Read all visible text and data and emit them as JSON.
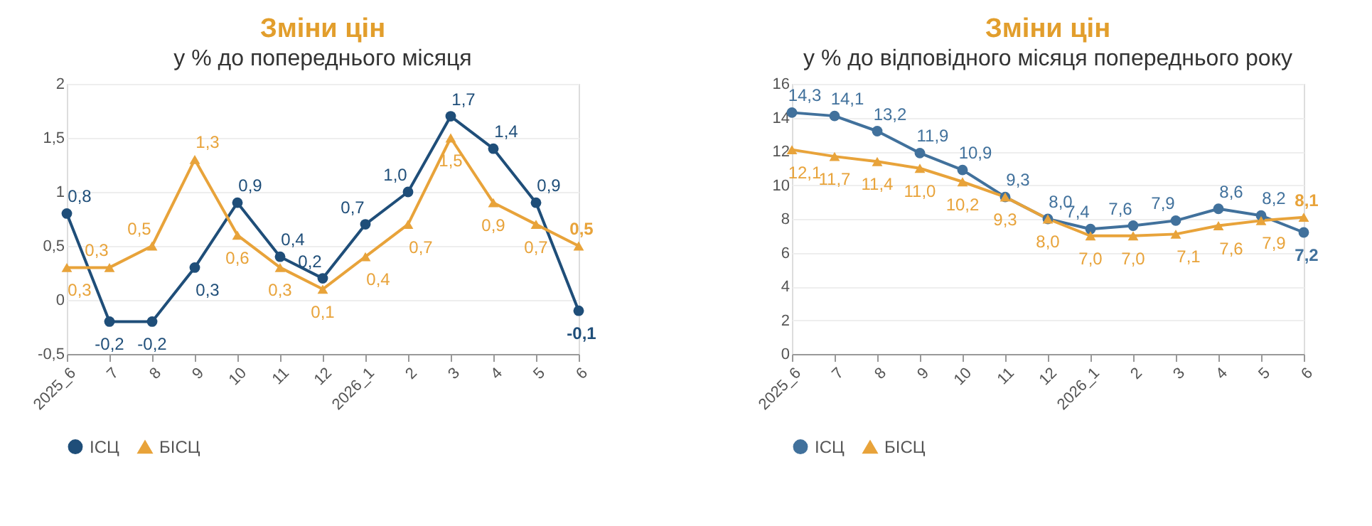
{
  "chart_data": [
    {
      "type": "line",
      "title": "Зміни цін",
      "subtitle": "у % до попереднього місяця",
      "categories": [
        "2025_6",
        "7",
        "8",
        "9",
        "10",
        "11",
        "12",
        "2026_1",
        "2",
        "3",
        "4",
        "5",
        "6"
      ],
      "series": [
        {
          "name": "ІСЦ",
          "color": "#1f4e79",
          "marker": "circle",
          "values": [
            0.8,
            -0.2,
            -0.2,
            0.3,
            0.9,
            0.4,
            0.2,
            0.7,
            1.0,
            1.7,
            1.4,
            0.9,
            -0.1
          ],
          "value_labels": [
            "0,8",
            "-0,2",
            "-0,2",
            "0,3",
            "0,9",
            "0,4",
            "0,2",
            "0,7",
            "1,0",
            "1,7",
            "1,4",
            "0,9",
            "-0,1"
          ]
        },
        {
          "name": "БІСЦ",
          "color": "#e8a33a",
          "marker": "triangle",
          "values": [
            0.3,
            0.3,
            0.5,
            1.3,
            0.6,
            0.3,
            0.1,
            0.4,
            0.7,
            1.5,
            0.9,
            0.7,
            0.5
          ],
          "value_labels": [
            "0,3",
            "0,3",
            "0,5",
            "1,3",
            "0,6",
            "0,3",
            "0,1",
            "0,4",
            "0,7",
            "1,5",
            "0,9",
            "0,7",
            "0,5"
          ]
        }
      ],
      "ylim": [
        -0.5,
        2
      ],
      "yticks": [
        {
          "value": -0.5,
          "label": "-0,5"
        },
        0,
        {
          "value": 0.5,
          "label": "0,5"
        },
        1,
        {
          "value": 1.5,
          "label": "1,5"
        },
        2
      ],
      "grid": "y",
      "legend": "bottom",
      "line_style": "solid"
    },
    {
      "type": "line",
      "title": "Зміни цін",
      "subtitle": "у % до відповідного місяця попереднього року",
      "categories": [
        "2025_6",
        "7",
        "8",
        "9",
        "10",
        "11",
        "12",
        "2026_1",
        "2",
        "3",
        "4",
        "5",
        "6"
      ],
      "series": [
        {
          "name": "ІСЦ",
          "color": "#41719c",
          "marker": "circle",
          "values": [
            14.3,
            14.1,
            13.2,
            11.9,
            10.9,
            9.3,
            8.0,
            7.4,
            7.6,
            7.9,
            8.6,
            8.2,
            7.2
          ],
          "value_labels": [
            "14,3",
            "14,1",
            "13,2",
            "11,9",
            "10,9",
            "9,3",
            "8,0",
            "7,4",
            "7,6",
            "7,9",
            "8,6",
            "8,2",
            "7,2"
          ]
        },
        {
          "name": "БІСЦ",
          "color": "#e8a33a",
          "marker": "triangle",
          "values": [
            12.1,
            11.7,
            11.4,
            11.0,
            10.2,
            9.3,
            8.0,
            7.0,
            7.0,
            7.1,
            7.6,
            7.9,
            8.1
          ],
          "value_labels": [
            "12,1",
            "11,7",
            "11,4",
            "11,0",
            "10,2",
            "9,3",
            "8,0",
            "7,0",
            "7,0",
            "7,1",
            "7,6",
            "7,9",
            "8,1"
          ]
        }
      ],
      "ylim": [
        0,
        16
      ],
      "yticks": [
        0,
        2,
        4,
        6,
        8,
        10,
        12,
        14,
        16
      ],
      "grid": "y",
      "legend": "bottom",
      "line_style": "solid"
    }
  ]
}
